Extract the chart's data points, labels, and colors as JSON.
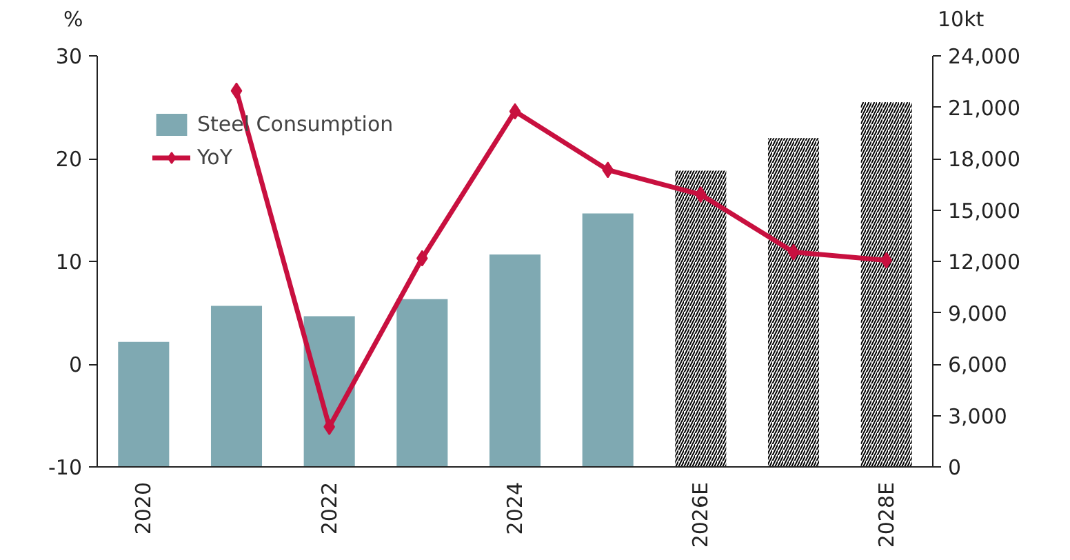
{
  "chart_data": {
    "type": "bar",
    "ylabel": "%",
    "y2label": "10kt",
    "categories": [
      "2020",
      null,
      "2022",
      null,
      "2024",
      null,
      "2026E",
      null,
      "2028E"
    ],
    "series": [
      {
        "name": "Steel Consumption",
        "axis": "y2",
        "color": "#7fa9b2",
        "colors": [
          "#7fa9b2",
          "#7fa9b2",
          "#7fa9b2",
          "#7fa9b2",
          "#7fa9b2",
          "#7fa9b2",
          "#000000",
          "#000000",
          "#000000"
        ],
        "values": [
          7300,
          9400,
          8800,
          9800,
          12400,
          14800,
          17300,
          19200,
          21300
        ]
      },
      {
        "name": "YoY",
        "type": "line",
        "color": "#c8103f",
        "marker": "diamond",
        "values": [
          null,
          26.6,
          -6.1,
          10.3,
          24.6,
          18.9,
          16.5,
          10.9,
          10.1
        ]
      }
    ],
    "ylim": [
      -10,
      30
    ],
    "yticks": [
      -10,
      0,
      10,
      20,
      30
    ],
    "y2lim": [
      0,
      24000
    ],
    "y2ticks": [
      {
        "value": 0,
        "label": "0"
      },
      {
        "value": 3000,
        "label": "3,000"
      },
      {
        "value": 6000,
        "label": "6,000"
      },
      {
        "value": 9000,
        "label": "9,000"
      },
      {
        "value": 12000,
        "label": "12,000"
      },
      {
        "value": 15000,
        "label": "15,000"
      },
      {
        "value": 18000,
        "label": "18,000"
      },
      {
        "value": 21000,
        "label": "21,000"
      },
      {
        "value": 24000,
        "label": "24,000"
      }
    ],
    "legend": "top left",
    "grid": false
  }
}
